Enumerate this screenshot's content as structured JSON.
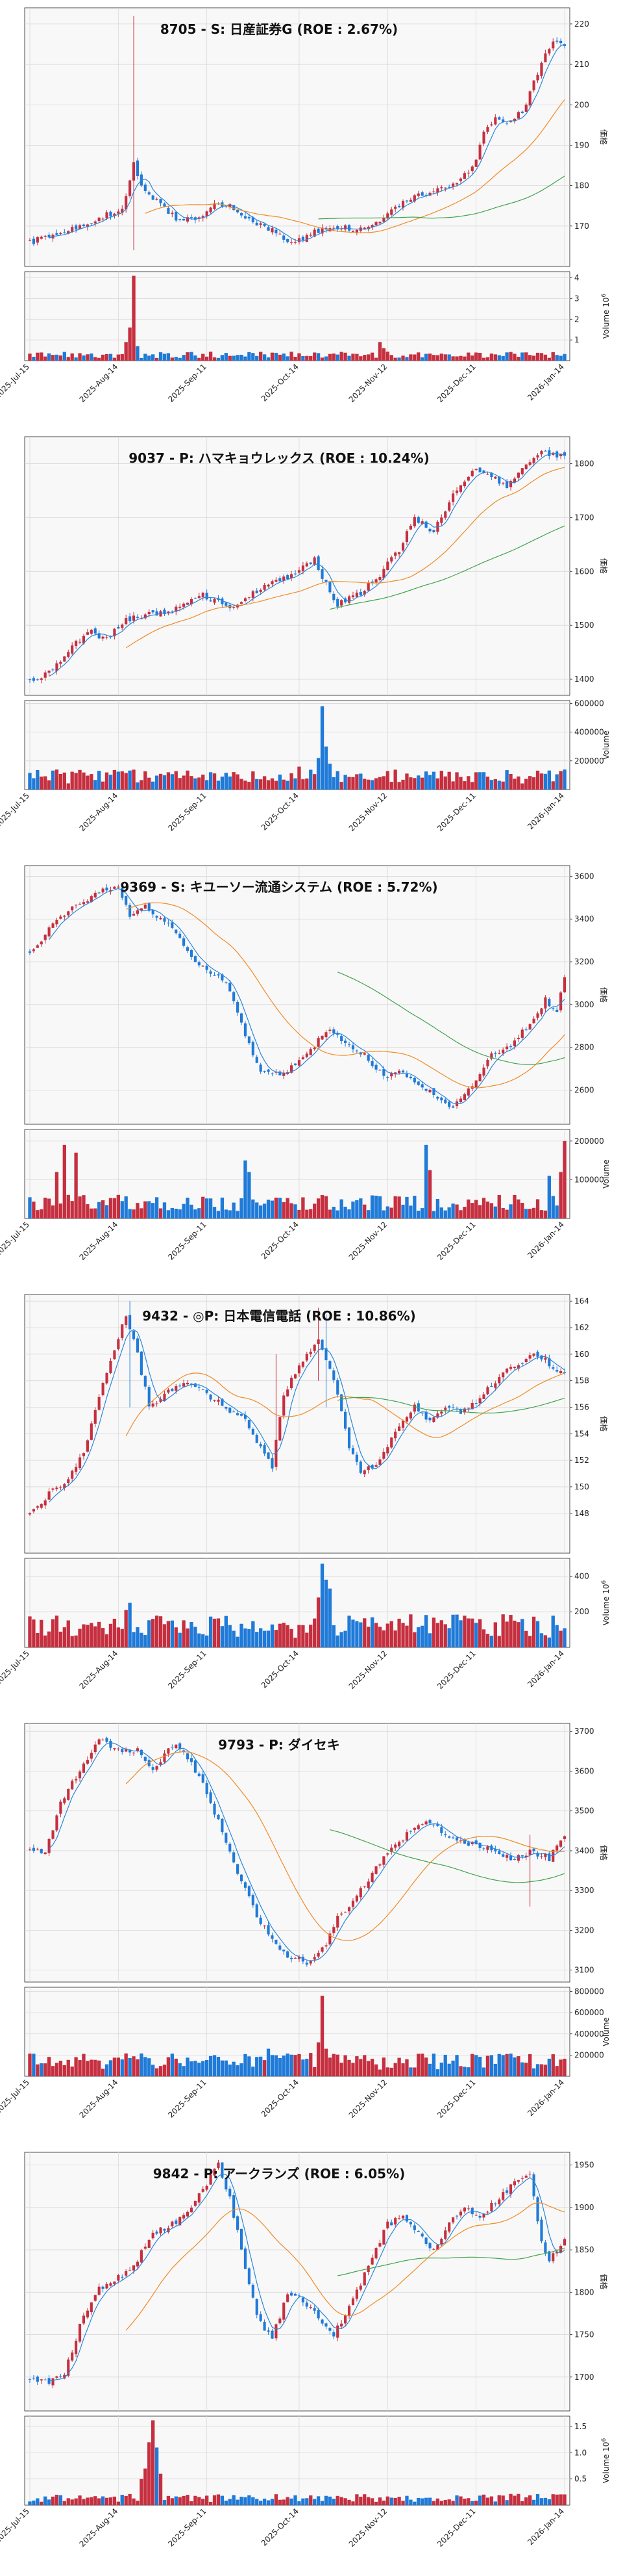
{
  "colors": {
    "up": "#c62f3f",
    "down": "#1f7ad8",
    "ma_short": "#2b86d8",
    "ma_mid": "#f08a24",
    "ma_long": "#3fa34d",
    "bg": "#f8f8f8",
    "grid": "#d8d8d8"
  },
  "x_ticks": [
    "2025-Jul-15",
    "2025-Aug-14",
    "2025-Sep-11",
    "2025-Oct-14",
    "2025-Nov-12",
    "2025-Dec-11",
    "2026-Jan-14"
  ],
  "chart_data": [
    {
      "type": "candlestick",
      "title": "8705 - S: 日産証券G (ROE : 2.67%)",
      "ylabel": "価格",
      "vol_label": "Volume",
      "vol_exp": "6",
      "ylim": [
        160,
        224
      ],
      "yticks": [
        170,
        180,
        190,
        200,
        210,
        220
      ],
      "vol_ylim": [
        0,
        4.3
      ],
      "vol_ticks": [
        1,
        2,
        3,
        4
      ],
      "anchors": [
        [
          0,
          166
        ],
        [
          8,
          168
        ],
        [
          18,
          172
        ],
        [
          24,
          174
        ],
        [
          27,
          186
        ],
        [
          29,
          180
        ],
        [
          33,
          176
        ],
        [
          38,
          172
        ],
        [
          43,
          172
        ],
        [
          48,
          175
        ],
        [
          52,
          175
        ],
        [
          58,
          171
        ],
        [
          63,
          169
        ],
        [
          68,
          166
        ],
        [
          73,
          168
        ],
        [
          79,
          170
        ],
        [
          85,
          169
        ],
        [
          89,
          170
        ],
        [
          92,
          172
        ],
        [
          96,
          175
        ],
        [
          100,
          177
        ],
        [
          105,
          179
        ],
        [
          111,
          181
        ],
        [
          115,
          184
        ],
        [
          118,
          193
        ],
        [
          121,
          197
        ],
        [
          124,
          196
        ],
        [
          128,
          198
        ],
        [
          131,
          206
        ],
        [
          134,
          212
        ],
        [
          136,
          216
        ],
        [
          139,
          214
        ]
      ],
      "spikes": [
        [
          27,
          222,
          164
        ]
      ],
      "vol_base": 0.28,
      "vol_spikes": [
        [
          27,
          4.1
        ],
        [
          26,
          1.6
        ],
        [
          25,
          0.9
        ],
        [
          28,
          0.7
        ],
        [
          91,
          0.9
        ],
        [
          92,
          0.6
        ]
      ],
      "ma_start": [
        5,
        30,
        75
      ]
    },
    {
      "type": "candlestick",
      "title": "9037 - P: ハマキョウレックス (ROE : 10.24%)",
      "ylabel": "価格",
      "vol_label": "Volume",
      "vol_exp": "",
      "ylim": [
        1370,
        1850
      ],
      "yticks": [
        1400,
        1500,
        1600,
        1700,
        1800
      ],
      "vol_ylim": [
        0,
        620000
      ],
      "vol_ticks": [
        200000,
        400000,
        600000
      ],
      "vol_tick_labels": [
        "200000",
        "400000",
        "600000"
      ],
      "anchors": [
        [
          0,
          1395
        ],
        [
          5,
          1415
        ],
        [
          10,
          1450
        ],
        [
          15,
          1490
        ],
        [
          20,
          1475
        ],
        [
          25,
          1510
        ],
        [
          30,
          1520
        ],
        [
          38,
          1530
        ],
        [
          45,
          1555
        ],
        [
          52,
          1535
        ],
        [
          58,
          1560
        ],
        [
          64,
          1580
        ],
        [
          70,
          1600
        ],
        [
          74,
          1625
        ],
        [
          76,
          1590
        ],
        [
          80,
          1540
        ],
        [
          85,
          1555
        ],
        [
          90,
          1585
        ],
        [
          96,
          1640
        ],
        [
          100,
          1700
        ],
        [
          105,
          1675
        ],
        [
          110,
          1740
        ],
        [
          115,
          1790
        ],
        [
          120,
          1775
        ],
        [
          124,
          1755
        ],
        [
          128,
          1790
        ],
        [
          132,
          1820
        ],
        [
          136,
          1815
        ],
        [
          139,
          1815
        ]
      ],
      "spikes": [],
      "vol_base": 90000,
      "vol_spikes": [
        [
          76,
          580000
        ],
        [
          77,
          300000
        ],
        [
          75,
          220000
        ],
        [
          78,
          180000
        ],
        [
          70,
          160000
        ]
      ],
      "ma_start": [
        5,
        25,
        78
      ]
    },
    {
      "type": "candlestick",
      "title": "9369 - S: キユーソー流通システム (ROE : 5.72%)",
      "ylabel": "価格",
      "vol_label": "Volume",
      "vol_exp": "",
      "ylim": [
        2440,
        3650
      ],
      "yticks": [
        2600,
        2800,
        3000,
        3200,
        3400,
        3600
      ],
      "vol_ylim": [
        0,
        230000
      ],
      "vol_ticks": [
        100000,
        200000
      ],
      "vol_tick_labels": [
        "100000",
        "200000"
      ],
      "anchors": [
        [
          0,
          3230
        ],
        [
          6,
          3380
        ],
        [
          12,
          3460
        ],
        [
          18,
          3520
        ],
        [
          23,
          3560
        ],
        [
          26,
          3420
        ],
        [
          30,
          3460
        ],
        [
          36,
          3380
        ],
        [
          41,
          3250
        ],
        [
          46,
          3150
        ],
        [
          51,
          3110
        ],
        [
          56,
          2850
        ],
        [
          60,
          2700
        ],
        [
          66,
          2680
        ],
        [
          72,
          2760
        ],
        [
          77,
          2880
        ],
        [
          82,
          2820
        ],
        [
          87,
          2760
        ],
        [
          92,
          2660
        ],
        [
          97,
          2680
        ],
        [
          102,
          2620
        ],
        [
          105,
          2580
        ],
        [
          110,
          2520
        ],
        [
          115,
          2620
        ],
        [
          120,
          2760
        ],
        [
          125,
          2800
        ],
        [
          130,
          2920
        ],
        [
          134,
          3020
        ],
        [
          137,
          2960
        ],
        [
          139,
          3140
        ]
      ],
      "spikes": [],
      "vol_base": 40000,
      "vol_spikes": [
        [
          56,
          150000
        ],
        [
          57,
          120000
        ],
        [
          103,
          190000
        ],
        [
          104,
          125000
        ],
        [
          139,
          200000
        ],
        [
          138,
          120000
        ],
        [
          135,
          110000
        ],
        [
          9,
          190000
        ],
        [
          12,
          170000
        ],
        [
          7,
          120000
        ]
      ],
      "ma_start": [
        5,
        25,
        80
      ]
    },
    {
      "type": "candlestick",
      "title": "9432 - ◎P: 日本電信電話 (ROE : 10.86%)",
      "ylabel": "価格",
      "vol_label": "Volume",
      "vol_exp": "6",
      "ylim": [
        145,
        164.5
      ],
      "yticks": [
        148,
        150,
        152,
        154,
        156,
        158,
        160,
        162,
        164
      ],
      "vol_ylim": [
        0,
        500
      ],
      "vol_ticks": [
        200,
        400
      ],
      "anchors": [
        [
          0,
          147.8
        ],
        [
          5,
          149.5
        ],
        [
          10,
          150.5
        ],
        [
          14,
          152.5
        ],
        [
          18,
          157
        ],
        [
          22,
          160.5
        ],
        [
          25,
          163
        ],
        [
          28,
          160
        ],
        [
          31,
          156
        ],
        [
          35,
          157
        ],
        [
          40,
          158
        ],
        [
          46,
          157
        ],
        [
          51,
          156
        ],
        [
          56,
          155
        ],
        [
          60,
          153
        ],
        [
          63,
          151.5
        ],
        [
          66,
          157
        ],
        [
          70,
          159
        ],
        [
          75,
          161
        ],
        [
          79,
          158
        ],
        [
          83,
          153
        ],
        [
          86,
          151
        ],
        [
          91,
          152
        ],
        [
          95,
          154
        ],
        [
          100,
          156
        ],
        [
          104,
          155
        ],
        [
          108,
          156
        ],
        [
          112,
          155.5
        ],
        [
          118,
          157
        ],
        [
          124,
          159
        ],
        [
          128,
          159.5
        ],
        [
          132,
          160
        ],
        [
          136,
          159
        ],
        [
          139,
          158.5
        ]
      ],
      "spikes": [
        [
          26,
          164,
          156
        ],
        [
          75,
          163.5,
          158
        ],
        [
          77,
          163,
          156
        ],
        [
          64,
          160,
          152
        ]
      ],
      "vol_base": 120,
      "vol_spikes": [
        [
          76,
          470
        ],
        [
          77,
          380
        ],
        [
          78,
          330
        ],
        [
          75,
          280
        ],
        [
          26,
          250
        ],
        [
          25,
          210
        ]
      ],
      "ma_start": [
        5,
        25,
        80
      ]
    },
    {
      "type": "candlestick",
      "title": "9793 - P: ダイセキ",
      "ylabel": "価格",
      "vol_label": "Volume",
      "vol_exp": "",
      "ylim": [
        3070,
        3720
      ],
      "yticks": [
        3100,
        3200,
        3300,
        3400,
        3500,
        3600,
        3700
      ],
      "vol_ylim": [
        0,
        840000
      ],
      "vol_ticks": [
        200000,
        400000,
        600000,
        800000
      ],
      "vol_tick_labels": [
        "200000",
        "400000",
        "600000",
        "800000"
      ],
      "anchors": [
        [
          0,
          3410
        ],
        [
          4,
          3390
        ],
        [
          8,
          3520
        ],
        [
          13,
          3600
        ],
        [
          18,
          3680
        ],
        [
          23,
          3650
        ],
        [
          28,
          3650
        ],
        [
          32,
          3610
        ],
        [
          38,
          3670
        ],
        [
          44,
          3590
        ],
        [
          50,
          3450
        ],
        [
          55,
          3320
        ],
        [
          60,
          3220
        ],
        [
          66,
          3140
        ],
        [
          72,
          3120
        ],
        [
          76,
          3150
        ],
        [
          80,
          3230
        ],
        [
          86,
          3300
        ],
        [
          92,
          3380
        ],
        [
          98,
          3440
        ],
        [
          103,
          3480
        ],
        [
          108,
          3440
        ],
        [
          114,
          3420
        ],
        [
          120,
          3400
        ],
        [
          126,
          3380
        ],
        [
          130,
          3400
        ],
        [
          135,
          3380
        ],
        [
          139,
          3440
        ]
      ],
      "spikes": [
        [
          130,
          3440,
          3260
        ]
      ],
      "vol_base": 140000,
      "vol_spikes": [
        [
          76,
          760000
        ],
        [
          75,
          320000
        ],
        [
          77,
          260000
        ],
        [
          73,
          220000
        ],
        [
          62,
          260000
        ],
        [
          63,
          200000
        ]
      ],
      "ma_start": [
        5,
        25,
        78
      ]
    },
    {
      "type": "candlestick",
      "title": "9842 - P: アークランズ (ROE : 6.05%)",
      "ylabel": "価格",
      "vol_label": "Volume",
      "vol_exp": "6",
      "ylim": [
        1660,
        1965
      ],
      "yticks": [
        1700,
        1750,
        1800,
        1850,
        1900,
        1950
      ],
      "vol_ylim": [
        0,
        1.7
      ],
      "vol_ticks": [
        0.5,
        1.0,
        1.5
      ],
      "vol_tick_labels": [
        "0.5",
        "1.0",
        "1.5"
      ],
      "anchors": [
        [
          0,
          1700
        ],
        [
          5,
          1695
        ],
        [
          9,
          1705
        ],
        [
          13,
          1760
        ],
        [
          17,
          1800
        ],
        [
          22,
          1815
        ],
        [
          27,
          1830
        ],
        [
          32,
          1870
        ],
        [
          37,
          1880
        ],
        [
          41,
          1895
        ],
        [
          45,
          1920
        ],
        [
          49,
          1950
        ],
        [
          52,
          1910
        ],
        [
          56,
          1830
        ],
        [
          59,
          1770
        ],
        [
          63,
          1745
        ],
        [
          67,
          1800
        ],
        [
          71,
          1790
        ],
        [
          75,
          1770
        ],
        [
          79,
          1750
        ],
        [
          84,
          1790
        ],
        [
          88,
          1830
        ],
        [
          93,
          1880
        ],
        [
          97,
          1890
        ],
        [
          101,
          1870
        ],
        [
          105,
          1850
        ],
        [
          109,
          1880
        ],
        [
          113,
          1900
        ],
        [
          117,
          1890
        ],
        [
          122,
          1910
        ],
        [
          126,
          1930
        ],
        [
          130,
          1940
        ],
        [
          133,
          1860
        ],
        [
          135,
          1840
        ],
        [
          139,
          1860
        ]
      ],
      "spikes": [],
      "vol_base": 0.14,
      "vol_spikes": [
        [
          32,
          1.62
        ],
        [
          31,
          1.2
        ],
        [
          33,
          1.1
        ],
        [
          30,
          0.7
        ],
        [
          34,
          0.6
        ],
        [
          29,
          0.5
        ]
      ],
      "ma_start": [
        5,
        25,
        80
      ]
    }
  ]
}
